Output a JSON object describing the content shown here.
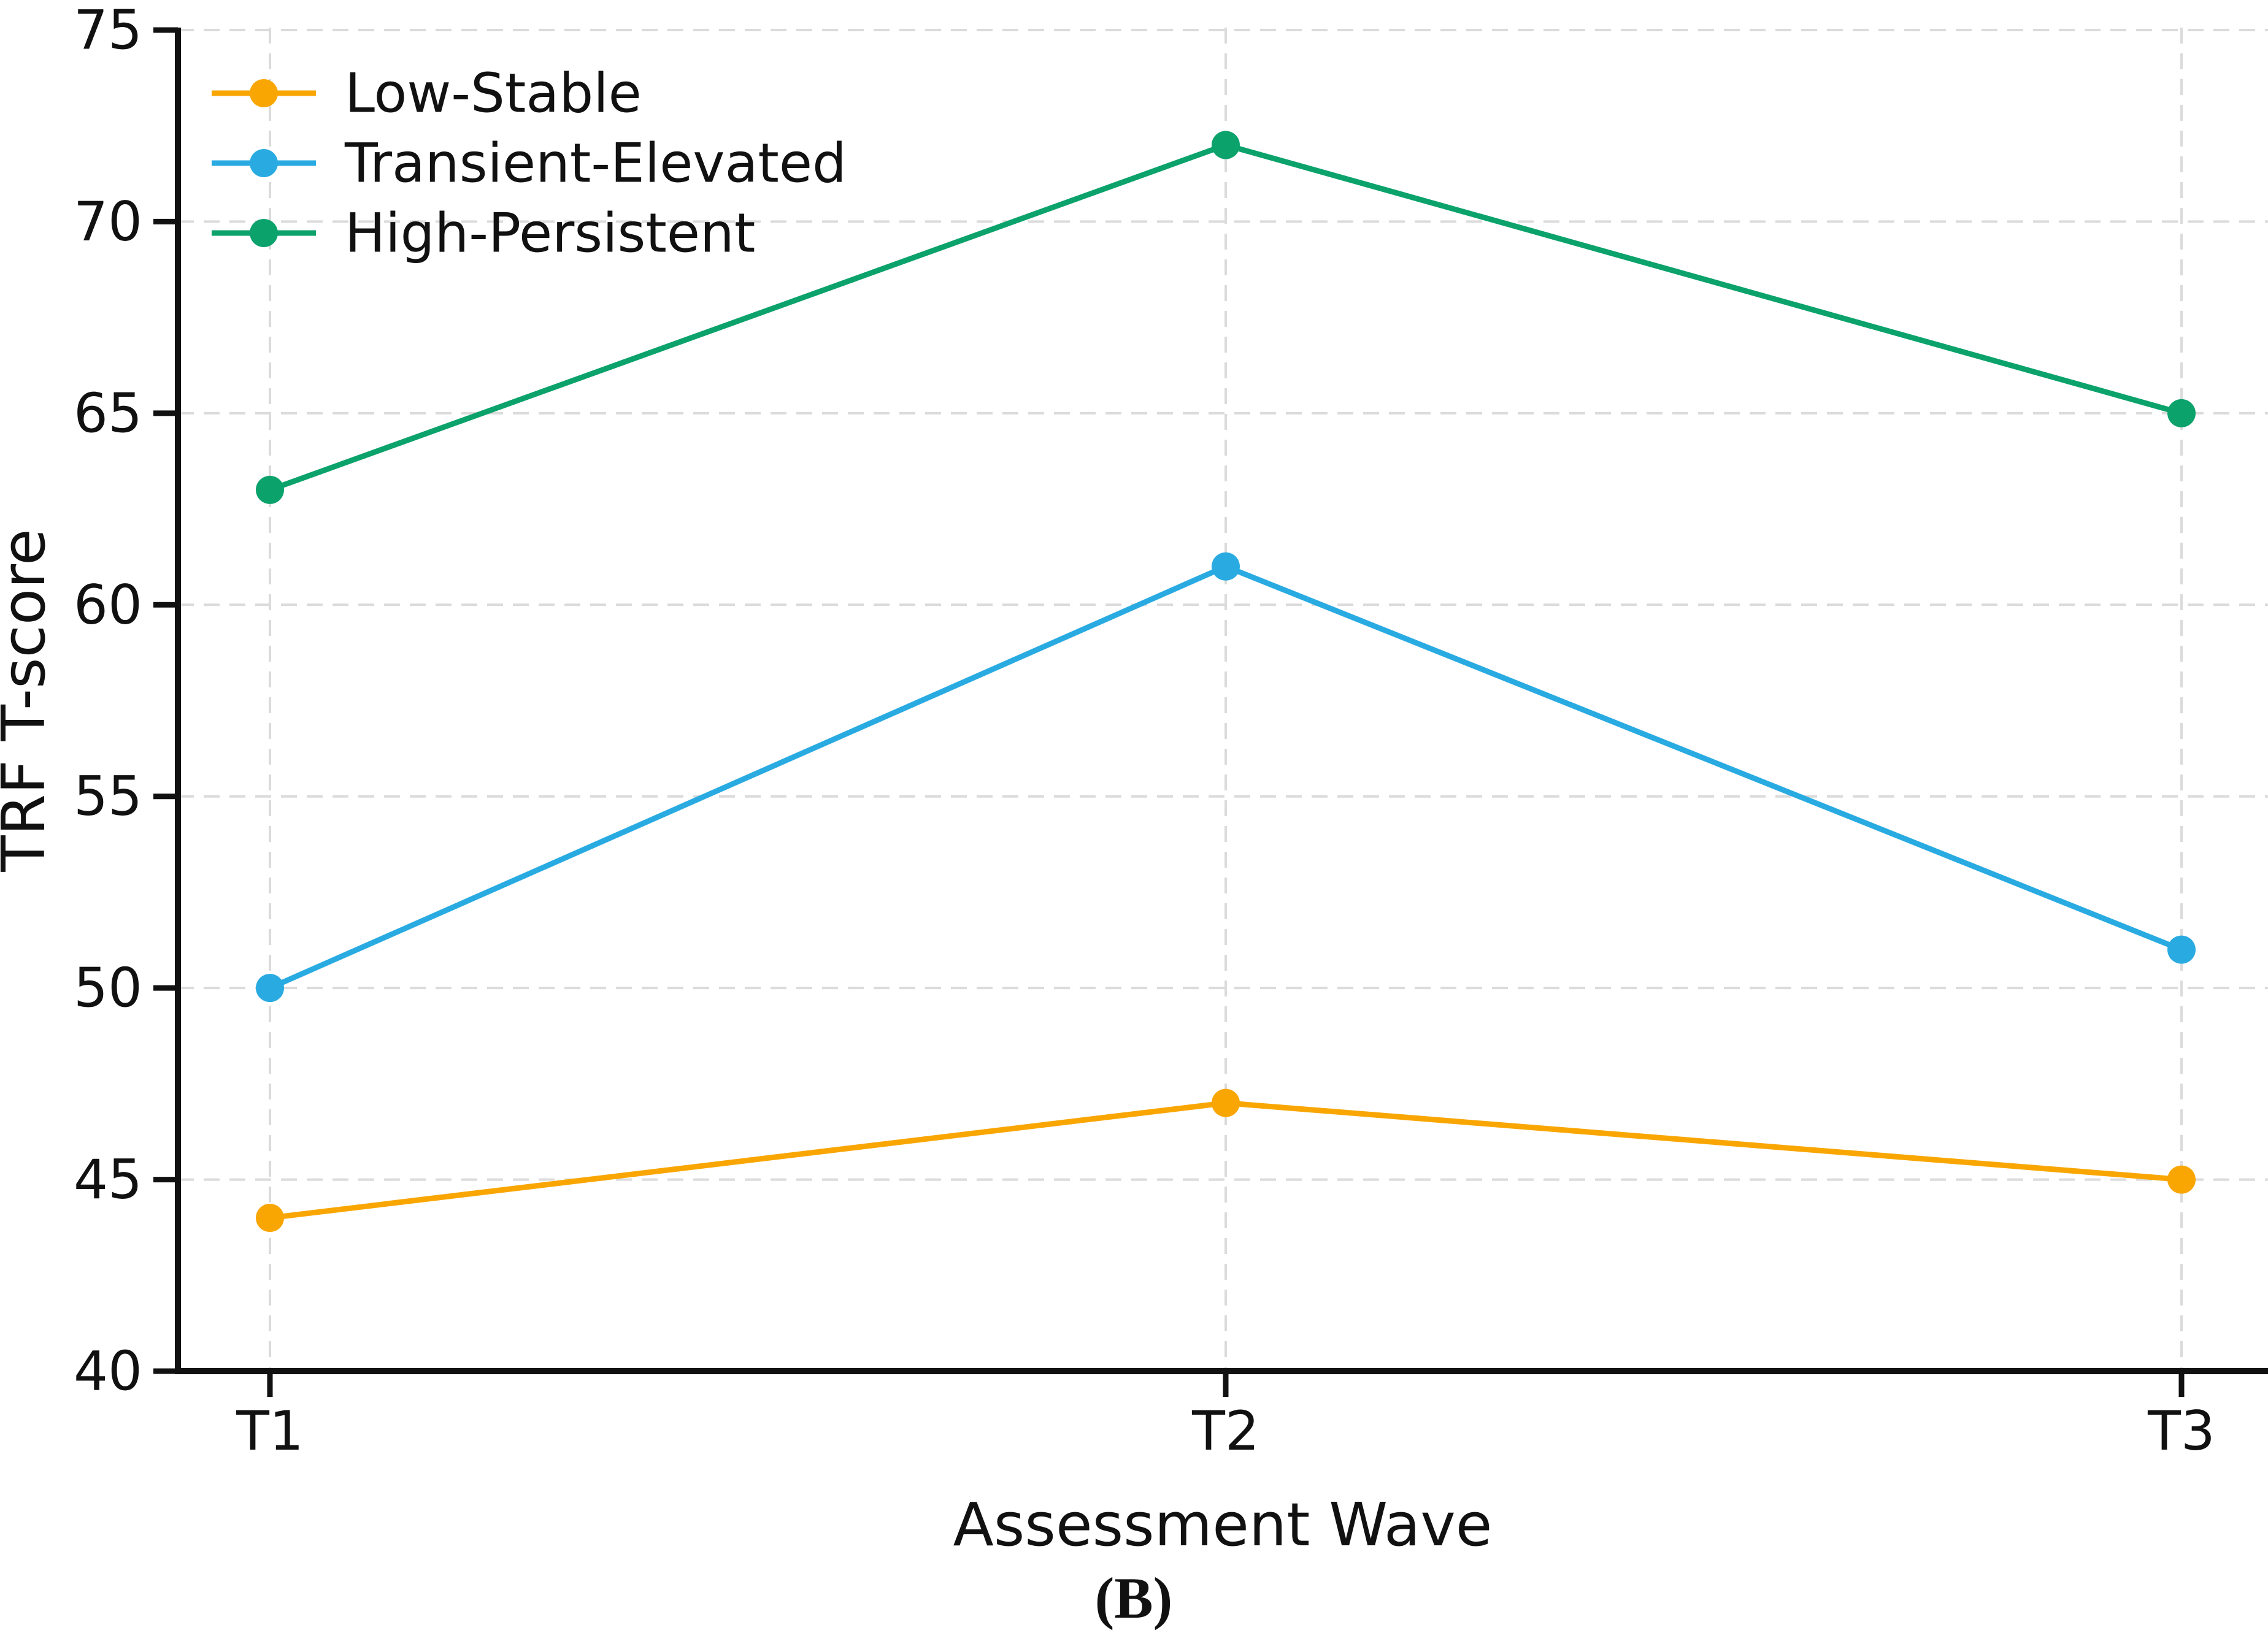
{
  "figure": {
    "caption": "(B)",
    "background": "#ffffff"
  },
  "chart_data": {
    "type": "line",
    "categories": [
      "T1",
      "T2",
      "T3"
    ],
    "series": [
      {
        "name": "Low-Stable",
        "values": [
          44,
          47,
          45
        ],
        "color": "#F9A602"
      },
      {
        "name": "Transient-Elevated",
        "values": [
          50,
          61,
          51
        ],
        "color": "#29ABE2"
      },
      {
        "name": "High-Persistent",
        "values": [
          63,
          72,
          65
        ],
        "color": "#0BA26C"
      }
    ],
    "title": "",
    "xlabel": "Assessment Wave",
    "ylabel": "TRF T-score",
    "ylim": [
      40,
      75
    ],
    "yticks": [
      40,
      45,
      50,
      55,
      60,
      65,
      70,
      75
    ],
    "grid": true,
    "grid_color": "#DBDBDB",
    "axis_color": "#111111",
    "legend_position": "upper-left",
    "legend_labels": [
      "Low-Stable",
      "Transient-Elevated",
      "High-Persistent"
    ]
  }
}
